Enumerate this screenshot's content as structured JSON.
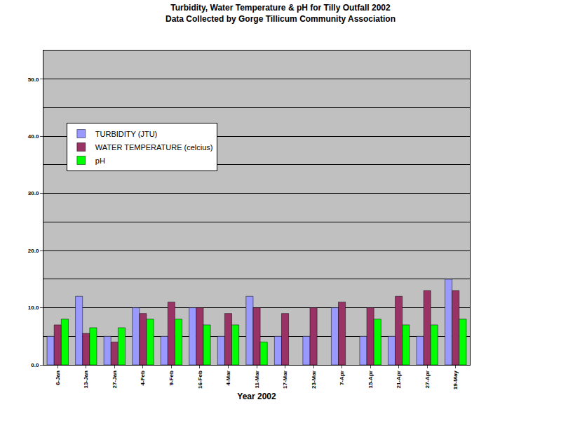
{
  "chart_data": {
    "type": "bar",
    "title": "Turbidity, Water Temperature & pH for Tilly Outfall 2002",
    "subtitle": "Data Collected by Gorge Tillicum Community Association",
    "x_label": "Year 2002",
    "categories": [
      "6-Jan",
      "13-Jan",
      "27-Jan",
      "4-Feb",
      "9-Feb",
      "16-Feb",
      "4-Mar",
      "11-Mar",
      "17-Mar",
      "23-Mar",
      "7-Apr",
      "15-Apr",
      "21-Apr",
      "27-Apr",
      "19-May"
    ],
    "series": [
      {
        "name": "TURBIDITY (JTU)",
        "color": "#9999FF",
        "values": [
          5,
          12,
          5,
          10,
          5,
          10,
          5,
          12,
          5,
          5,
          10,
          5,
          5,
          5,
          15
        ]
      },
      {
        "name": "WATER TEMPERATURE (celcius)",
        "color": "#993366",
        "values": [
          7,
          5.5,
          4,
          9,
          11,
          10,
          9,
          10,
          9,
          10,
          11,
          10,
          12,
          13,
          13
        ]
      },
      {
        "name": "pH",
        "color": "#00FF00",
        "values": [
          8,
          6.5,
          6.5,
          8,
          8,
          7,
          7,
          4,
          null,
          null,
          null,
          8,
          7,
          7,
          8
        ]
      }
    ],
    "ylim": [
      0,
      55
    ],
    "yticks": [
      {
        "value": 0,
        "label": "0.0"
      },
      {
        "value": 10,
        "label": "10.0"
      },
      {
        "value": 20,
        "label": "20.0"
      },
      {
        "value": 30,
        "label": "30.0"
      },
      {
        "value": 40,
        "label": "40.0"
      },
      {
        "value": 50,
        "label": "50.0"
      }
    ],
    "grid": true,
    "legend": "upper left"
  }
}
